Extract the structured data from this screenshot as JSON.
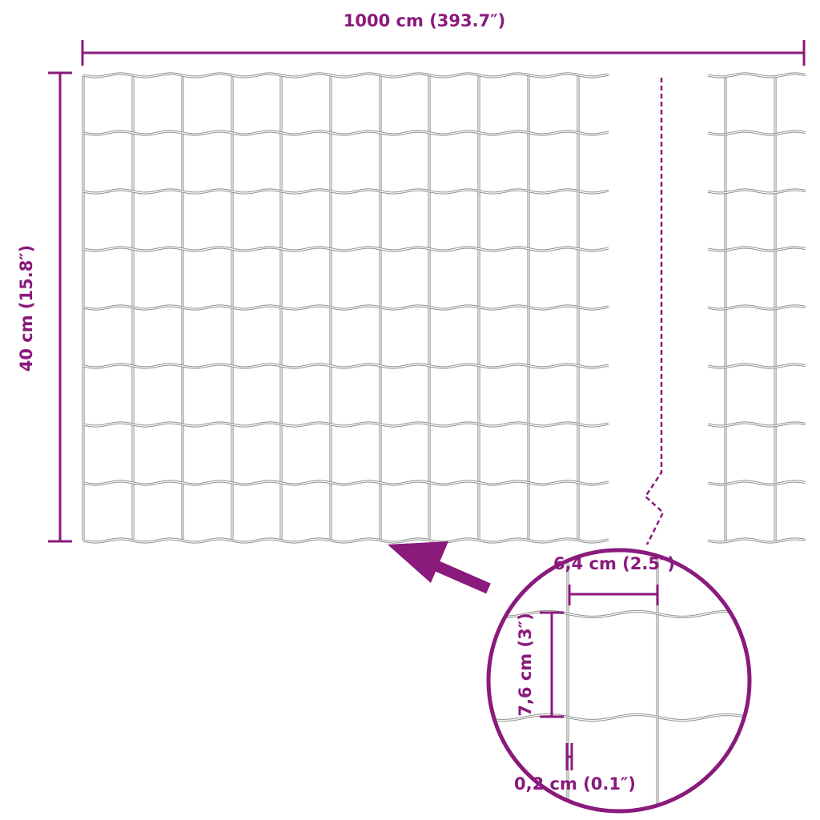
{
  "colors": {
    "accent": "#8a1a7c",
    "wire": "#8f8f8f"
  },
  "dimensions": {
    "width_label": "1000 cm (393.7″)",
    "height_label": "40 cm (15.8″)"
  },
  "detail": {
    "mesh_width_label": "6,4 cm (2.5″)",
    "mesh_height_label": "7,6 cm (3″)",
    "wire_thickness_label": "0,2 cm (0.1″)"
  }
}
